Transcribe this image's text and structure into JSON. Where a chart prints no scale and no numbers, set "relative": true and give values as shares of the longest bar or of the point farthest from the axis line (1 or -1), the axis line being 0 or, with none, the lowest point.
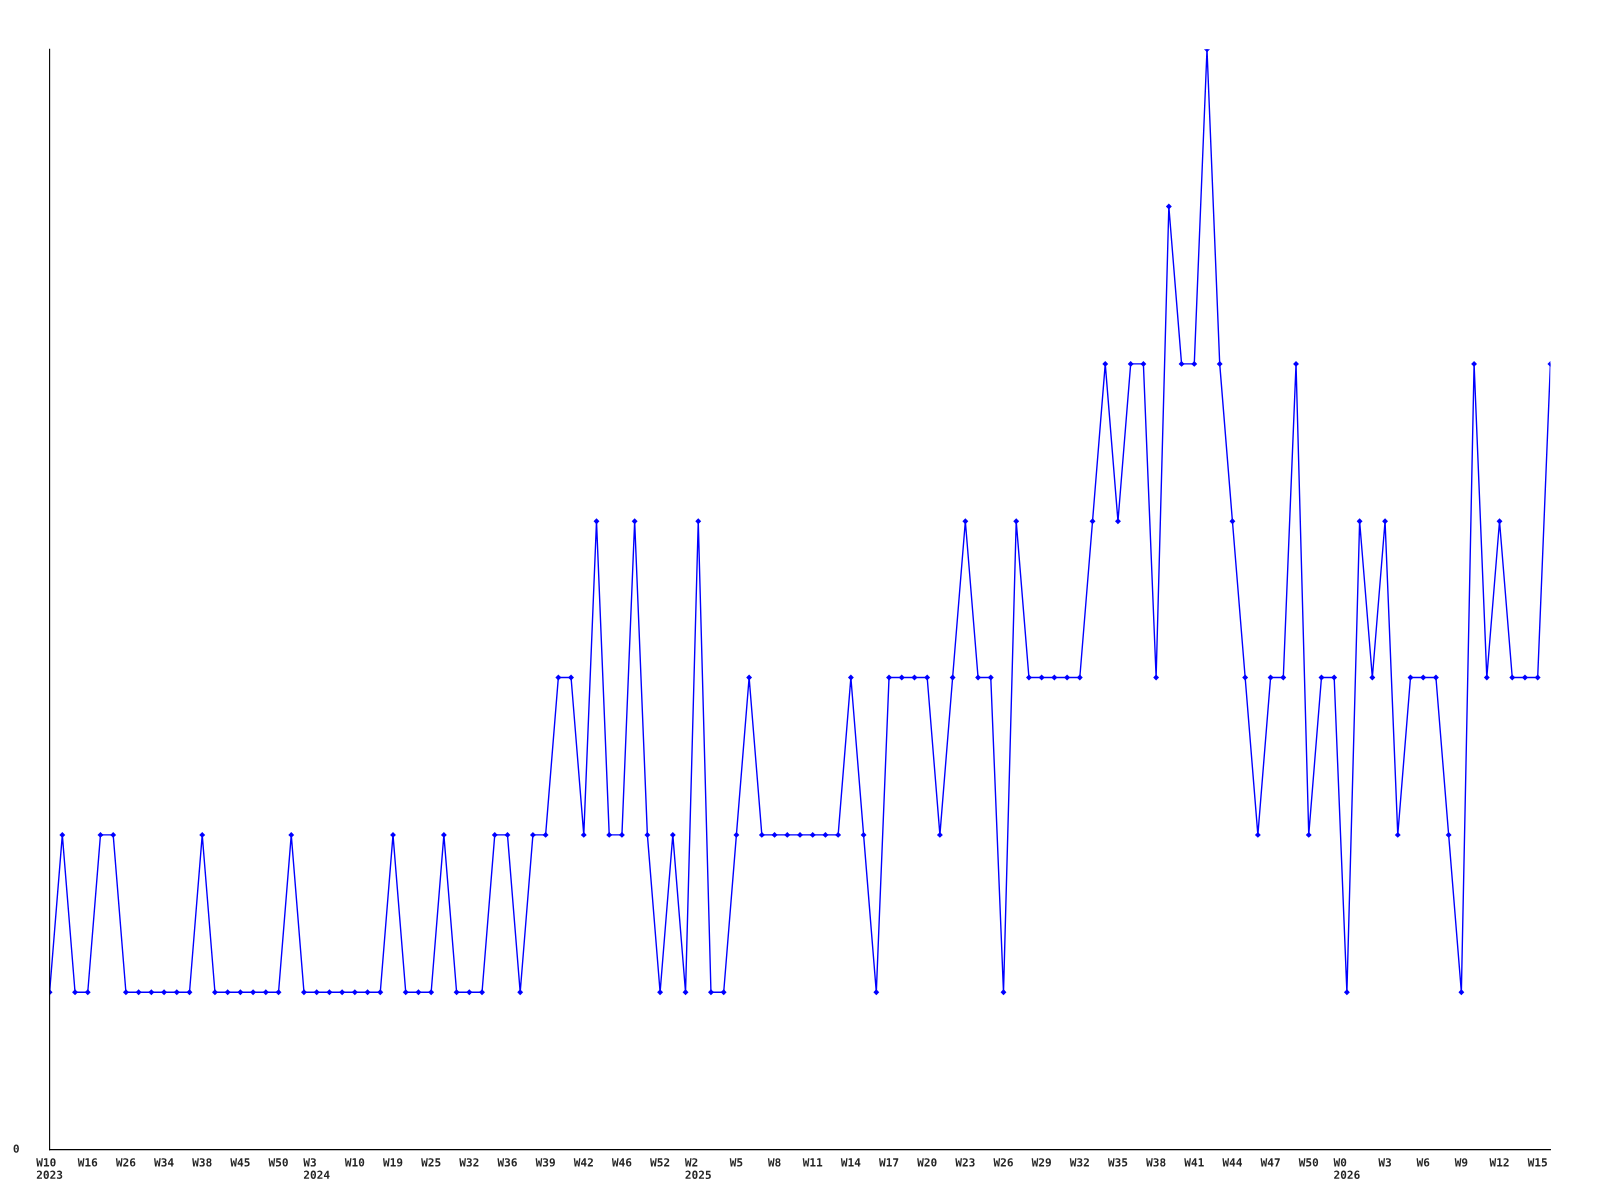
{
  "chart_data": {
    "type": "line",
    "relative": true,
    "marker": "diamond",
    "line_style": "solid",
    "grid": false,
    "annotations": [
      "0"
    ],
    "categories": [
      "W10\n2023",
      null,
      null,
      "W16",
      null,
      null,
      "W26",
      null,
      null,
      "W34",
      null,
      null,
      "W38",
      null,
      null,
      "W45",
      null,
      null,
      "W50",
      null,
      null,
      "W3\n2024",
      null,
      null,
      "W10",
      null,
      null,
      "W19",
      null,
      null,
      "W25",
      null,
      null,
      "W32",
      null,
      null,
      "W36",
      null,
      null,
      "W39",
      null,
      null,
      "W42",
      null,
      null,
      "W46",
      null,
      null,
      "W52",
      null,
      null,
      "W2\n2025",
      null,
      null,
      "W5",
      null,
      null,
      "W8",
      null,
      null,
      "W11",
      null,
      null,
      "W14",
      null,
      null,
      "W17",
      null,
      null,
      "W20",
      null,
      null,
      "W23",
      null,
      null,
      "W26",
      null,
      null,
      "W29",
      null,
      null,
      "W32",
      null,
      null,
      "W35",
      null,
      null,
      "W38",
      null,
      null,
      "W41",
      null,
      null,
      "W44",
      null,
      null,
      "W47",
      null,
      null,
      "W50",
      null,
      null,
      "W0\n2026",
      null,
      null,
      "W3",
      null,
      null,
      "W6",
      null,
      null,
      "W9",
      null,
      null,
      "W12",
      null,
      null,
      "W15",
      null
    ],
    "series": [
      {
        "color": "#0000ff",
        "values": [
          0.143,
          0.286,
          0.143,
          0.143,
          0.286,
          0.286,
          0.143,
          0.143,
          0.143,
          0.143,
          0.143,
          0.143,
          0.286,
          0.143,
          0.143,
          0.143,
          0.143,
          0.143,
          0.143,
          0.286,
          0.143,
          0.143,
          0.143,
          0.143,
          0.143,
          0.143,
          0.143,
          0.286,
          0.143,
          0.143,
          0.143,
          0.286,
          0.143,
          0.143,
          0.143,
          0.286,
          0.286,
          0.143,
          0.286,
          0.286,
          0.429,
          0.429,
          0.286,
          0.571,
          0.286,
          0.286,
          0.571,
          0.286,
          0.143,
          0.286,
          0.143,
          0.571,
          0.143,
          0.143,
          0.286,
          0.429,
          0.286,
          0.286,
          0.286,
          0.286,
          0.286,
          0.286,
          0.286,
          0.429,
          0.286,
          0.143,
          0.429,
          0.429,
          0.429,
          0.429,
          0.286,
          0.429,
          0.571,
          0.429,
          0.429,
          0.143,
          0.571,
          0.429,
          0.429,
          0.429,
          0.429,
          0.429,
          0.571,
          0.714,
          0.571,
          0.714,
          0.714,
          0.429,
          0.857,
          0.714,
          0.714,
          1,
          0.714,
          0.571,
          0.429,
          0.286,
          0.429,
          0.429,
          0.714,
          0.286,
          0.429,
          0.429,
          0.143,
          0.571,
          0.429,
          0.571,
          0.286,
          0.429,
          0.429,
          0.429,
          0.286,
          0.143,
          0.714,
          0.429,
          0.571,
          0.429,
          0.429,
          0.429,
          0.714
        ]
      }
    ]
  }
}
